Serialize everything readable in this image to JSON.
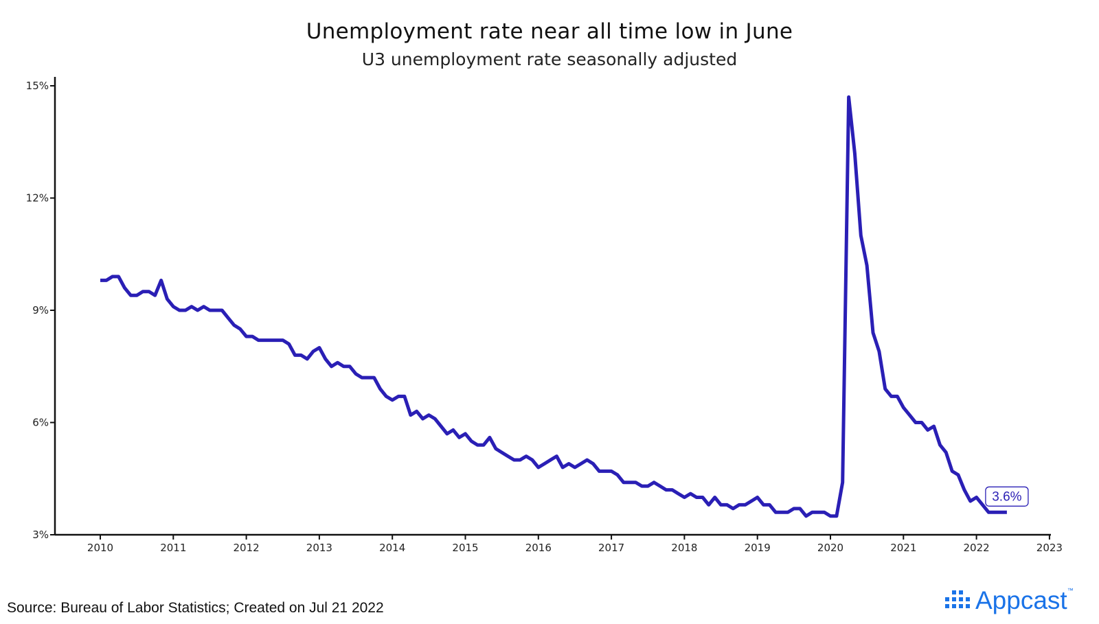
{
  "title": "Unemployment rate near all time low in June",
  "subtitle": "U3 unemployment rate seasonally adjusted",
  "source": "Source: Bureau of Labor Statistics; Created on Jul 21 2022",
  "logo": {
    "text": "Appcast",
    "trademark": "™",
    "icon": "appcast-logo-icon",
    "color": "#1a73e8"
  },
  "chart_data": {
    "type": "line",
    "title": "Unemployment rate near all time low in June",
    "subtitle": "U3 unemployment rate seasonally adjusted",
    "xlabel": "",
    "ylabel": "",
    "xlim": [
      2009.6,
      2023.0
    ],
    "ylim": [
      3,
      15
    ],
    "x_ticks": [
      2010,
      2011,
      2012,
      2013,
      2014,
      2015,
      2016,
      2017,
      2018,
      2019,
      2020,
      2021,
      2022,
      2023
    ],
    "x_tick_labels": [
      "2010",
      "2011",
      "2012",
      "2013",
      "2014",
      "2015",
      "2016",
      "2017",
      "2018",
      "2019",
      "2020",
      "2021",
      "2022",
      "2023"
    ],
    "y_ticks": [
      3,
      6,
      9,
      12,
      15
    ],
    "y_tick_labels": [
      "3%",
      "6%",
      "9%",
      "12%",
      "15%"
    ],
    "grid": false,
    "line_color": "#2a1fb5",
    "series": [
      {
        "start": "2010-01",
        "frequency": "monthly",
        "values": [
          9.8,
          9.8,
          9.9,
          9.9,
          9.6,
          9.4,
          9.4,
          9.5,
          9.5,
          9.4,
          9.8,
          9.3,
          9.1,
          9.0,
          9.0,
          9.1,
          9.0,
          9.1,
          9.0,
          9.0,
          9.0,
          8.8,
          8.6,
          8.5,
          8.3,
          8.3,
          8.2,
          8.2,
          8.2,
          8.2,
          8.2,
          8.1,
          7.8,
          7.8,
          7.7,
          7.9,
          8.0,
          7.7,
          7.5,
          7.6,
          7.5,
          7.5,
          7.3,
          7.2,
          7.2,
          7.2,
          6.9,
          6.7,
          6.6,
          6.7,
          6.7,
          6.2,
          6.3,
          6.1,
          6.2,
          6.1,
          5.9,
          5.7,
          5.8,
          5.6,
          5.7,
          5.5,
          5.4,
          5.4,
          5.6,
          5.3,
          5.2,
          5.1,
          5.0,
          5.0,
          5.1,
          5.0,
          4.8,
          4.9,
          5.0,
          5.1,
          4.8,
          4.9,
          4.8,
          4.9,
          5.0,
          4.9,
          4.7,
          4.7,
          4.7,
          4.6,
          4.4,
          4.4,
          4.4,
          4.3,
          4.3,
          4.4,
          4.3,
          4.2,
          4.2,
          4.1,
          4.0,
          4.1,
          4.0,
          4.0,
          3.8,
          4.0,
          3.8,
          3.8,
          3.7,
          3.8,
          3.8,
          3.9,
          4.0,
          3.8,
          3.8,
          3.6,
          3.6,
          3.6,
          3.7,
          3.7,
          3.5,
          3.6,
          3.6,
          3.6,
          3.5,
          3.5,
          4.4,
          14.7,
          13.2,
          11.0,
          10.2,
          8.4,
          7.9,
          6.9,
          6.7,
          6.7,
          6.4,
          6.2,
          6.0,
          6.0,
          5.8,
          5.9,
          5.4,
          5.2,
          4.7,
          4.6,
          4.2,
          3.9,
          4.0,
          3.8,
          3.6,
          3.6,
          3.6,
          3.6
        ]
      }
    ],
    "annotation": {
      "text": "3.6%",
      "value": 3.6,
      "date": "2022-06"
    }
  }
}
